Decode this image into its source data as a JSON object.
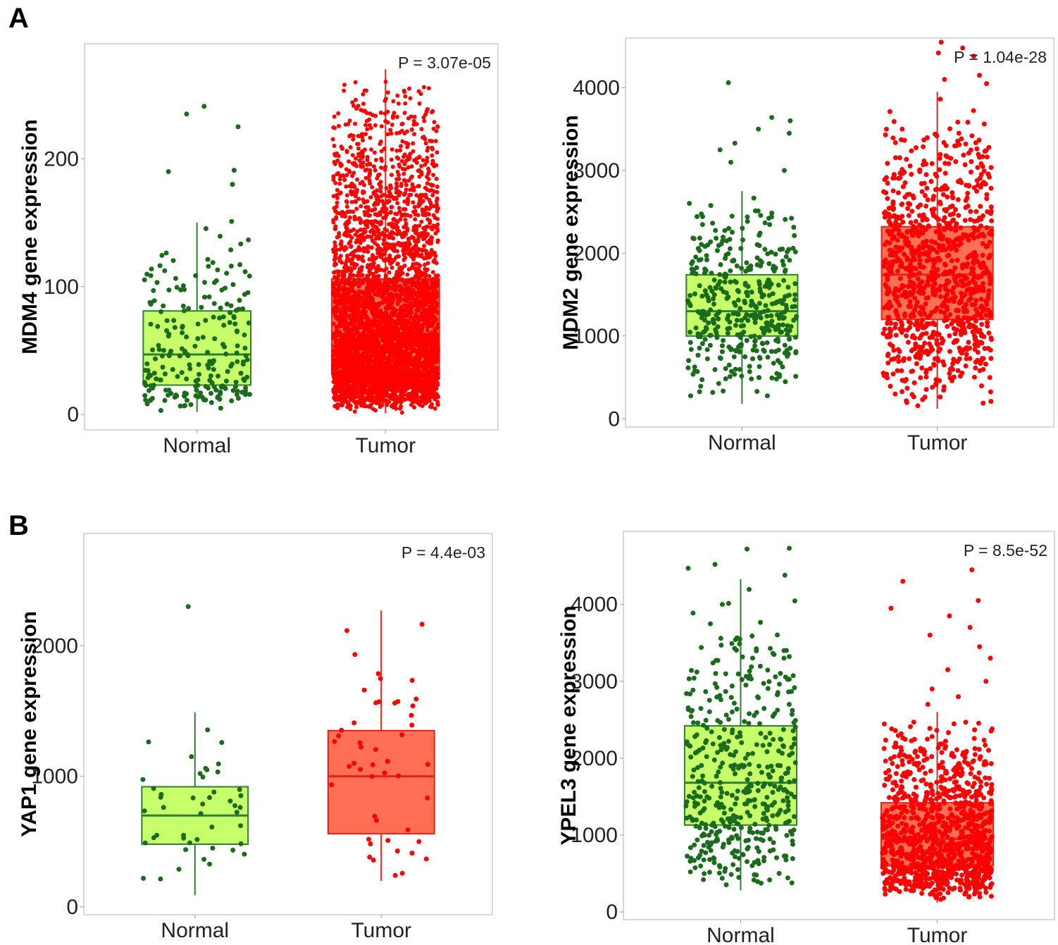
{
  "figure": {
    "panel_letters": [
      "A",
      "B"
    ]
  },
  "colors": {
    "normal_point": "#1a6b1a",
    "normal_box_fill": "#c6ff6a",
    "normal_box_stroke": "#2e7d32",
    "tumor_point": "#ff0000",
    "tumor_box_fill": "#ff6f55",
    "tumor_box_stroke": "#e0221a",
    "frame": "#cccccc"
  },
  "chart_data": [
    {
      "id": "mdm4",
      "type": "box",
      "panel": "A",
      "title": "",
      "xlabel": "",
      "ylabel": "MDM4 gene expression",
      "annotation": "P = 3.07e-05",
      "categories": [
        "Normal",
        "Tumor"
      ],
      "yticks": [
        0,
        100,
        200
      ],
      "ytick_labels": [
        "0",
        "100",
        "200"
      ],
      "ylim": [
        -12,
        290
      ],
      "grid": false,
      "boxes": [
        {
          "name": "Normal",
          "q1": 23,
          "median": 47,
          "q3": 81,
          "whisker_low": 2,
          "whisker_high": 150,
          "n_points": 230,
          "outliers": [
            151,
            180,
            190,
            191,
            225,
            235,
            241
          ]
        },
        {
          "name": "Tumor",
          "q1": 33,
          "median": 63,
          "q3": 106,
          "whisker_low": 1,
          "whisker_high": 270,
          "n_points": 4200,
          "outliers": []
        }
      ]
    },
    {
      "id": "mdm2",
      "type": "box",
      "panel": "A",
      "title": "",
      "xlabel": "",
      "ylabel": "MDM2 gene expression",
      "annotation": "P = 1.04e-28",
      "categories": [
        "Normal",
        "Tumor"
      ],
      "yticks": [
        0,
        1000,
        2000,
        3000,
        4000
      ],
      "ytick_labels": [
        "0",
        "1000",
        "2000",
        "3000",
        "4000"
      ],
      "ylim": [
        -100,
        4600
      ],
      "grid": false,
      "boxes": [
        {
          "name": "Normal",
          "q1": 1000,
          "median": 1300,
          "q3": 1740,
          "whisker_low": 180,
          "whisker_high": 2750,
          "n_points": 420,
          "outliers": [
            3000,
            3100,
            3250,
            3330,
            3450,
            3500,
            3600,
            3640,
            4060
          ]
        },
        {
          "name": "Tumor",
          "q1": 1200,
          "median": 1740,
          "q3": 2320,
          "whisker_low": 120,
          "whisker_high": 3950,
          "n_points": 1000,
          "outliers": [
            4050,
            4100,
            4150,
            4380,
            4420,
            4480,
            4550
          ]
        }
      ]
    },
    {
      "id": "yap1",
      "type": "box",
      "panel": "B",
      "title": "",
      "xlabel": "",
      "ylabel": "YAP1 gene expression",
      "annotation": "P = 4.4e-03",
      "categories": [
        "Normal",
        "Tumor"
      ],
      "yticks": [
        0,
        1000,
        2000
      ],
      "ytick_labels": [
        "0",
        "1000",
        "2000"
      ],
      "ylim": [
        -60,
        2860
      ],
      "grid": false,
      "boxes": [
        {
          "name": "Normal",
          "q1": 480,
          "median": 700,
          "q3": 920,
          "whisker_low": 90,
          "whisker_high": 1490,
          "n_points": 46,
          "outliers": [
            2300
          ]
        },
        {
          "name": "Tumor",
          "q1": 560,
          "median": 1000,
          "q3": 1350,
          "whisker_low": 200,
          "whisker_high": 2270,
          "n_points": 48,
          "outliers": []
        }
      ]
    },
    {
      "id": "ypel3",
      "type": "box",
      "panel": "B",
      "title": "",
      "xlabel": "",
      "ylabel": "YPEL3 gene expression",
      "annotation": "P = 8.5e-52",
      "categories": [
        "Normal",
        "Tumor"
      ],
      "yticks": [
        0,
        1000,
        2000,
        3000,
        4000
      ],
      "ytick_labels": [
        "0",
        "1000",
        "2000",
        "3000",
        "4000"
      ],
      "ylim": [
        -100,
        4950
      ],
      "grid": false,
      "boxes": [
        {
          "name": "Normal",
          "q1": 1130,
          "median": 1680,
          "q3": 2420,
          "whisker_low": 280,
          "whisker_high": 4330,
          "n_points": 460,
          "outliers": [
            4380,
            4470,
            4520,
            4720,
            4730
          ]
        },
        {
          "name": "Tumor",
          "q1": 600,
          "median": 950,
          "q3": 1420,
          "whisker_low": 120,
          "whisker_high": 2600,
          "n_points": 1100,
          "outliers": [
            2700,
            2800,
            2900,
            3000,
            3150,
            3300,
            3450,
            3600,
            3700,
            3850,
            3950,
            4050,
            4300,
            4450
          ]
        }
      ]
    }
  ]
}
